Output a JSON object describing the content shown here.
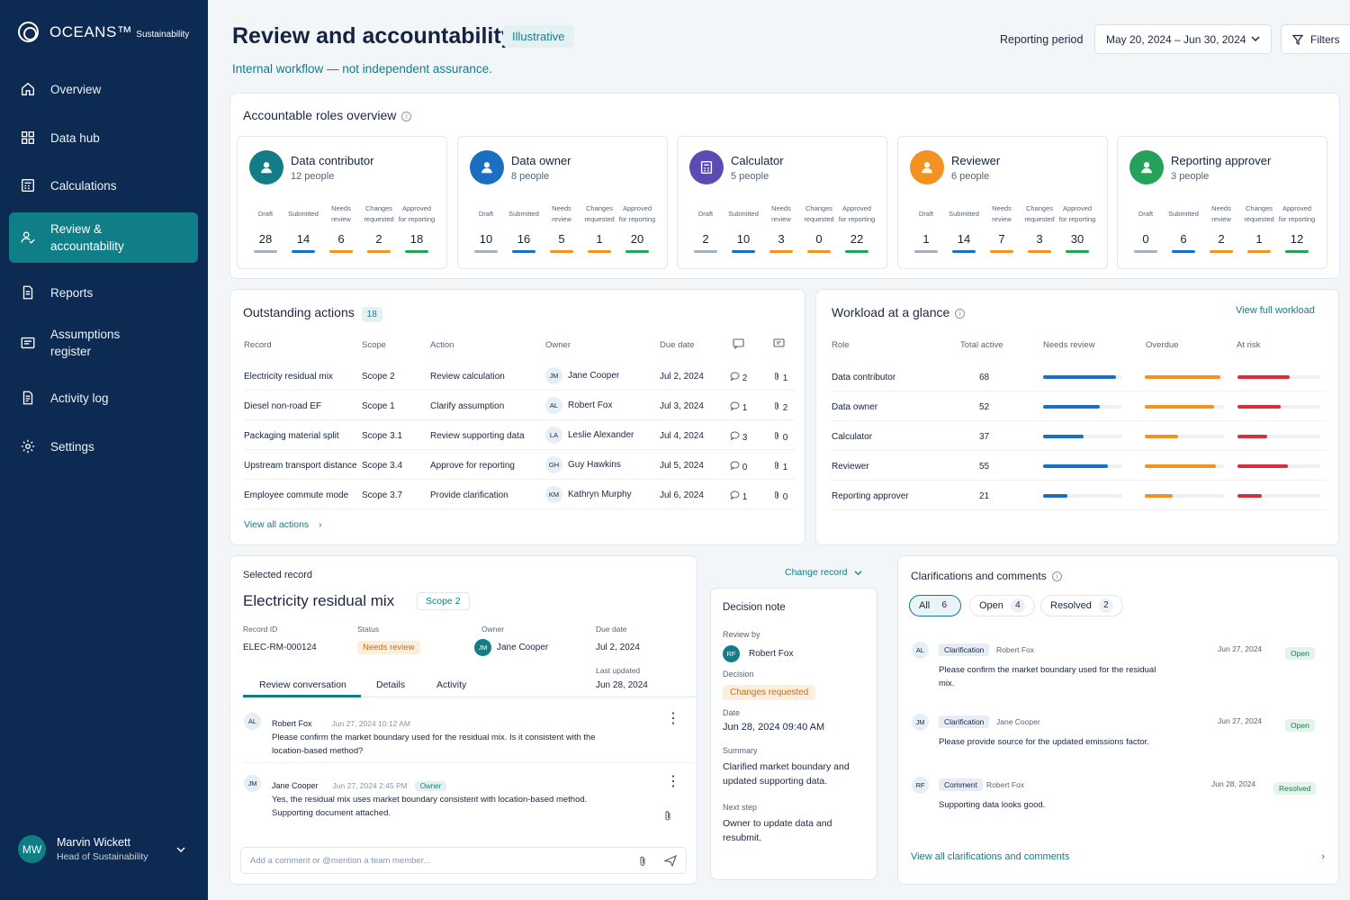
{
  "brand": {
    "name": "OCEANS™",
    "sub": "Sustainability"
  },
  "nav": [
    {
      "label": "Overview",
      "icon": "home-icon"
    },
    {
      "label": "Data hub",
      "icon": "grid-icon"
    },
    {
      "label": "Calculations",
      "icon": "calculator-icon"
    },
    {
      "label": "Review & accountability",
      "icon": "user-check-icon",
      "active": true
    },
    {
      "label": "Reports",
      "icon": "document-icon"
    },
    {
      "label": "Assumptions register",
      "icon": "register-icon"
    },
    {
      "label": "Activity log",
      "icon": "log-icon"
    },
    {
      "label": "Settings",
      "icon": "gear-icon"
    }
  ],
  "user": {
    "initials": "MW",
    "name": "Marvin Wickett",
    "role": "Head of Sustainability"
  },
  "header": {
    "title": "Review and accountability",
    "badge": "Illustrative",
    "subtitle": "Internal workflow — not independent assurance.",
    "period_label": "Reporting period",
    "period_value": "May 20, 2024 – Jun 30, 2024",
    "filters_label": "Filters"
  },
  "roles_overview": {
    "title": "Accountable roles overview",
    "stat_labels": [
      "Draft",
      "Submitted",
      "Needs review",
      "Changes requested",
      "Approved for reporting"
    ],
    "stat_colors": [
      "#a7b1bd",
      "#1a6fc4",
      "#f39220",
      "#f39220",
      "#25a25a"
    ],
    "roles": [
      {
        "name": "Data contributor",
        "people": "12 people",
        "color": "#127d87",
        "icon": "person-icon",
        "stats": [
          "28",
          "14",
          "6",
          "2",
          "18"
        ]
      },
      {
        "name": "Data owner",
        "people": "8 people",
        "color": "#1a6fc4",
        "icon": "person-icon",
        "stats": [
          "10",
          "16",
          "5",
          "1",
          "20"
        ]
      },
      {
        "name": "Calculator",
        "people": "5 people",
        "color": "#5b4bb4",
        "icon": "calculator-icon",
        "stats": [
          "2",
          "10",
          "3",
          "0",
          "22"
        ]
      },
      {
        "name": "Reviewer",
        "people": "6 people",
        "color": "#f39220",
        "icon": "person-icon",
        "stats": [
          "1",
          "14",
          "7",
          "3",
          "30"
        ]
      },
      {
        "name": "Reporting approver",
        "people": "3 people",
        "color": "#25a25a",
        "icon": "person-check-icon",
        "stats": [
          "0",
          "6",
          "2",
          "1",
          "12"
        ]
      }
    ]
  },
  "outstanding": {
    "title": "Outstanding actions",
    "count": "18",
    "headers": [
      "Record",
      "Scope",
      "Action",
      "Owner",
      "Due date"
    ],
    "rows": [
      {
        "record": "Electricity residual mix",
        "scope": "Scope 2",
        "action": "Review calculation",
        "initials": "JM",
        "owner": "Jane Cooper",
        "due": "Jul 2, 2024",
        "comments": "2",
        "files": "1"
      },
      {
        "record": "Diesel non-road EF",
        "scope": "Scope 1",
        "action": "Clarify assumption",
        "initials": "AL",
        "owner": "Robert Fox",
        "due": "Jul 3, 2024",
        "comments": "1",
        "files": "2"
      },
      {
        "record": "Packaging material split",
        "scope": "Scope 3.1",
        "action": "Review supporting data",
        "initials": "LA",
        "owner": "Leslie Alexander",
        "due": "Jul 4, 2024",
        "comments": "3",
        "files": "0"
      },
      {
        "record": "Upstream transport distance",
        "scope": "Scope 3.4",
        "action": "Approve for reporting",
        "initials": "GH",
        "owner": "Guy Hawkins",
        "due": "Jul 5, 2024",
        "comments": "0",
        "files": "1"
      },
      {
        "record": "Employee commute mode",
        "scope": "Scope 3.7",
        "action": "Provide clarification",
        "initials": "KM",
        "owner": "Kathryn Murphy",
        "due": "Jul 6, 2024",
        "comments": "1",
        "files": "0"
      }
    ],
    "view_all": "View all actions"
  },
  "workload": {
    "title": "Workload at a glance",
    "link": "View full workload",
    "headers": [
      "Role",
      "Total active",
      "Needs review",
      "Overdue",
      "At risk"
    ],
    "colors": {
      "needs_review": "#1a6fc4",
      "overdue": "#f39220",
      "at_risk": "#d92d3a"
    },
    "rows": [
      {
        "role": "Data contributor",
        "total": "68",
        "needs_review": 0.92,
        "overdue": 0.95,
        "at_risk": 0.63
      },
      {
        "role": "Data owner",
        "total": "52",
        "needs_review": 0.72,
        "overdue": 0.88,
        "at_risk": 0.52
      },
      {
        "role": "Calculator",
        "total": "37",
        "needs_review": 0.51,
        "overdue": 0.42,
        "at_risk": 0.36
      },
      {
        "role": "Reviewer",
        "total": "55",
        "needs_review": 0.82,
        "overdue": 0.9,
        "at_risk": 0.61
      },
      {
        "role": "Reporting approver",
        "total": "21",
        "needs_review": 0.31,
        "overdue": 0.35,
        "at_risk": 0.29
      }
    ]
  },
  "selected": {
    "label": "Selected record",
    "change": "Change record",
    "name": "Electricity residual mix",
    "scope": "Scope 2",
    "record_id_label": "Record ID",
    "record_id": "ELEC-RM-000124",
    "status_label": "Status",
    "status": "Needs review",
    "owner_label": "Owner",
    "owner_initials": "JM",
    "owner": "Jane Cooper",
    "due_label": "Due date",
    "due": "Jul 2, 2024",
    "updated_label": "Last updated",
    "updated": "Jun 28, 2024",
    "tabs": [
      "Review conversation",
      "Details",
      "Activity"
    ],
    "messages": [
      {
        "initials": "AL",
        "name": "Robert Fox",
        "time": "Jun 27, 2024 10:12 AM",
        "tag": "",
        "text": "Please confirm the market boundary used for the residual mix. Is it consistent with the location-based method?"
      },
      {
        "initials": "JM",
        "name": "Jane Cooper",
        "time": "Jun 27, 2024 2:45 PM",
        "tag": "Owner",
        "text": "Yes, the residual mix uses market boundary consistent with location-based method. Supporting document attached."
      }
    ],
    "comment_placeholder": "Add a comment or @mention a team member..."
  },
  "decision": {
    "title": "Decision note",
    "review_by_label": "Review by",
    "reviewer_initials": "RF",
    "reviewer": "Robert Fox",
    "decision_label": "Decision",
    "decision": "Changes requested",
    "date_label": "Date",
    "date": "Jun 28, 2024 09:40 AM",
    "summary_label": "Summary",
    "summary": "Clarified market boundary and updated supporting data.",
    "next_label": "Next step",
    "next": "Owner to update data and resubmit."
  },
  "clarifications": {
    "title": "Clarifications and comments",
    "filters": [
      {
        "label": "All",
        "count": "6"
      },
      {
        "label": "Open",
        "count": "4"
      },
      {
        "label": "Resolved",
        "count": "2"
      }
    ],
    "items": [
      {
        "initials": "AL",
        "type": "Clarification",
        "author": "Robert Fox",
        "date": "Jun 27, 2024",
        "status": "Open",
        "text": "Please confirm the market boundary used for the residual mix."
      },
      {
        "initials": "JM",
        "type": "Clarification",
        "author": "Jane Cooper",
        "date": "Jun 27, 2024",
        "status": "Open",
        "text": "Please provide source for the updated emissions factor."
      },
      {
        "initials": "RF",
        "type": "Comment",
        "author": "Robert Fox",
        "date": "Jun 28, 2024",
        "status": "Resolved",
        "text": "Supporting data looks good."
      }
    ],
    "view_all": "View all clarifications and comments"
  }
}
